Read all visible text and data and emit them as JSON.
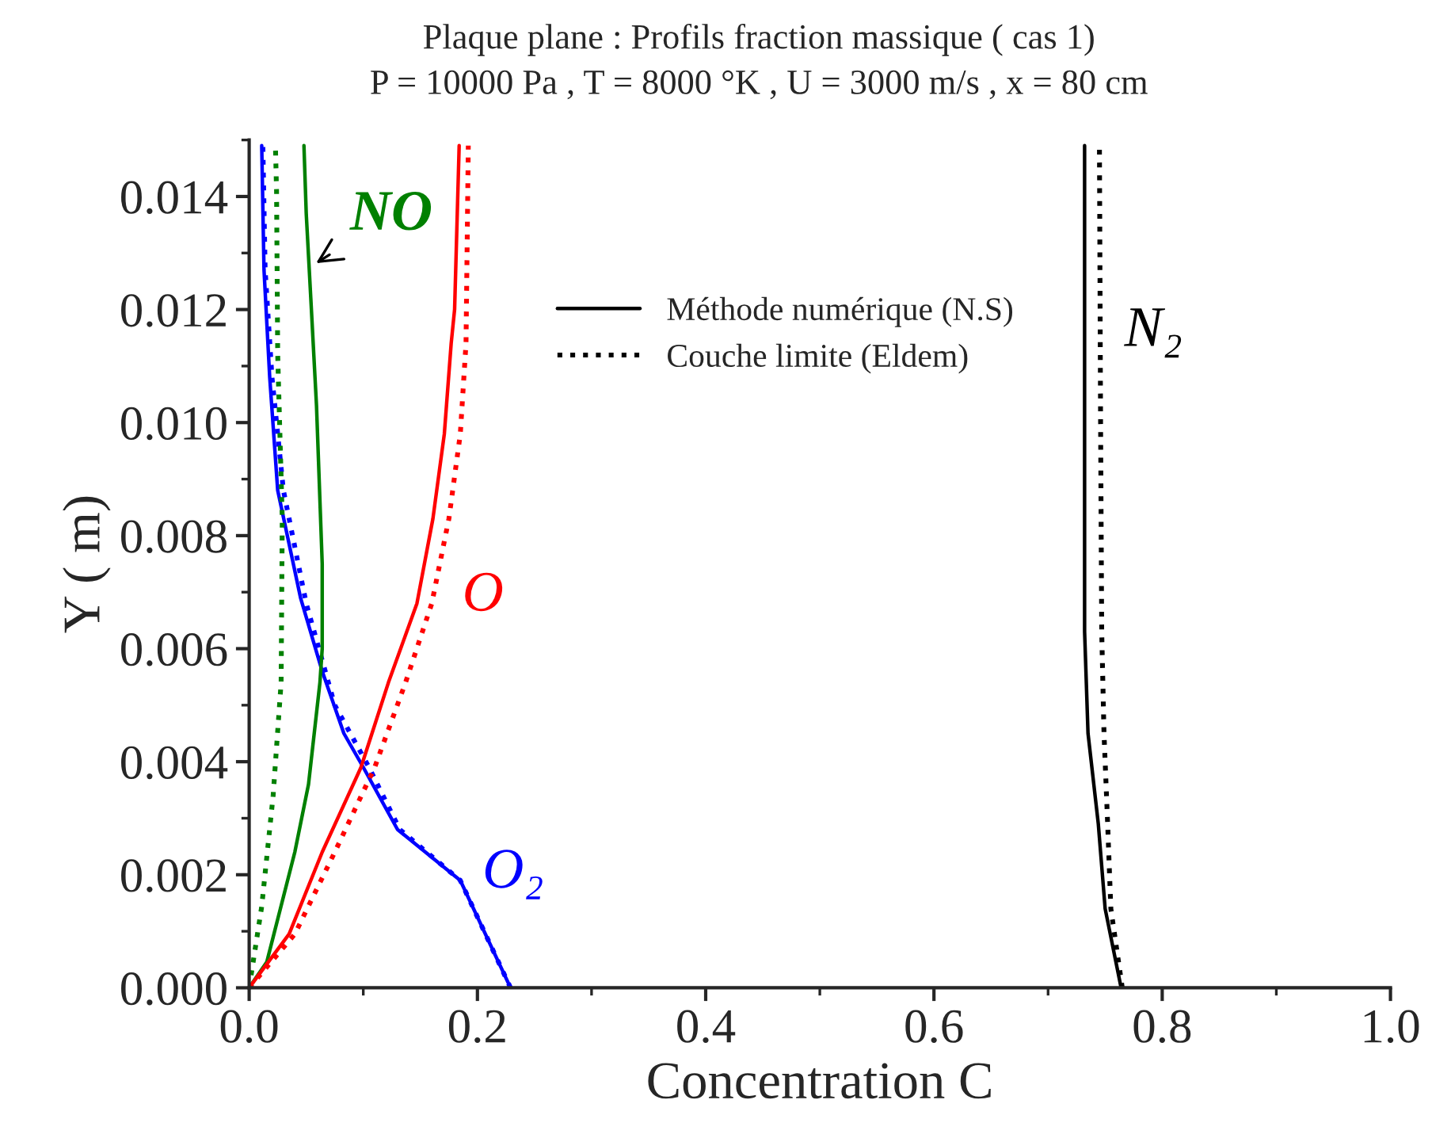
{
  "chart_data": {
    "type": "line",
    "title": "Plaque plane : Profils fraction massique ( cas 1)",
    "subtitle": "P = 10000 Pa , T = 8000 °K , U = 3000 m/s , x = 80 cm",
    "xlabel": "Concentration C",
    "ylabel": "Y ( m)",
    "xlim": [
      0,
      1.0
    ],
    "ylim": [
      0,
      0.015
    ],
    "xticks": [
      {
        "value": 0,
        "label": "0.0"
      },
      {
        "value": 0.2,
        "label": "0.2"
      },
      {
        "value": 0.4,
        "label": "0.4"
      },
      {
        "value": 0.6,
        "label": "0.6"
      },
      {
        "value": 0.8,
        "label": "0.8"
      },
      {
        "value": 1.0,
        "label": "1.0"
      }
    ],
    "yticks": [
      {
        "value": 0,
        "label": "0.000"
      },
      {
        "value": 0.002,
        "label": "0.002"
      },
      {
        "value": 0.004,
        "label": "0.004"
      },
      {
        "value": 0.006,
        "label": "0.006"
      },
      {
        "value": 0.008,
        "label": "0.008"
      },
      {
        "value": 0.01,
        "label": "0.010"
      },
      {
        "value": 0.012,
        "label": "0.012"
      },
      {
        "value": 0.014,
        "label": "0.014"
      }
    ],
    "grid": false,
    "legend": "top",
    "marker": "none",
    "series": [
      {
        "name": "Méthode numérique (N.S)",
        "color": "#000000",
        "line_style": "solid",
        "x": [
          0.764,
          0.75,
          0.744,
          0.735,
          0.732,
          0.732,
          0.732
        ],
        "values": [
          0,
          0.0014,
          0.0029,
          0.0045,
          0.0063,
          0.01,
          0.0149
        ]
      },
      {
        "name": "Couche limite (Eldem)",
        "color": "#000000",
        "line_style": "dotted",
        "x": [
          0.765,
          0.755,
          0.752,
          0.749,
          0.747,
          0.746,
          0.745
        ],
        "values": [
          0,
          0.0014,
          0.003,
          0.0045,
          0.0063,
          0.01,
          0.0149
        ]
      },
      {
        "color": "#0000ff",
        "line_style": "solid",
        "x": [
          0.229,
          0.185,
          0.13,
          0.1,
          0.083,
          0.064,
          0.045,
          0.025,
          0.018,
          0.013,
          0.011
        ],
        "values": [
          0,
          0.0019,
          0.0028,
          0.0039,
          0.0045,
          0.0056,
          0.0069,
          0.0088,
          0.0108,
          0.0127,
          0.0149
        ]
      },
      {
        "color": "#0000ff",
        "line_style": "dotted",
        "x": [
          0.229,
          0.185,
          0.132,
          0.105,
          0.075,
          0.05,
          0.03,
          0.02,
          0.014,
          0.012
        ],
        "values": [
          0,
          0.0019,
          0.0028,
          0.0039,
          0.005,
          0.0068,
          0.0088,
          0.0108,
          0.0127,
          0.0149
        ]
      },
      {
        "color": "#008000",
        "line_style": "solid",
        "x": [
          0,
          0.0155,
          0.04,
          0.052,
          0.062,
          0.064,
          0.064,
          0.059,
          0.054,
          0.05,
          0.048
        ],
        "values": [
          0,
          0.00046,
          0.0024,
          0.0036,
          0.0054,
          0.006,
          0.0075,
          0.0103,
          0.0122,
          0.0137,
          0.0149
        ]
      },
      {
        "color": "#008000",
        "line_style": "dotted",
        "x": [
          0,
          0.011,
          0.021,
          0.028,
          0.029,
          0.025,
          0.024,
          0.023
        ],
        "values": [
          0,
          0.00144,
          0.0034,
          0.0054,
          0.0083,
          0.0112,
          0.0141,
          0.0149
        ]
      },
      {
        "color": "#ff0000",
        "line_style": "solid",
        "x": [
          0,
          0.035,
          0.064,
          0.098,
          0.122,
          0.147,
          0.161,
          0.171,
          0.177,
          0.18,
          0.184
        ],
        "values": [
          0,
          0.00095,
          0.0024,
          0.0039,
          0.0054,
          0.0068,
          0.0083,
          0.0098,
          0.0114,
          0.012,
          0.0149
        ]
      },
      {
        "color": "#ff0000",
        "line_style": "dotted",
        "x": [
          0,
          0.04,
          0.075,
          0.11,
          0.137,
          0.16,
          0.175,
          0.185,
          0.19,
          0.192
        ],
        "values": [
          0,
          0.00095,
          0.0024,
          0.0039,
          0.0054,
          0.0068,
          0.0083,
          0.0098,
          0.0114,
          0.0149
        ]
      }
    ],
    "annotations": [
      {
        "text": "N₂",
        "x": 0.746,
        "y": 0.0116
      },
      {
        "text": "O",
        "x": 0.147,
        "y": 0.0068
      },
      {
        "text": "O₂",
        "x": 0.185,
        "y": 0.0019
      },
      {
        "text": "NO",
        "x": 0.057,
        "y": 0.0128
      }
    ]
  }
}
